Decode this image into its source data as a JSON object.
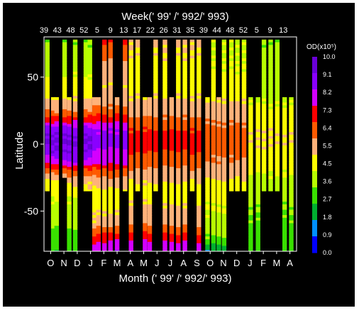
{
  "chart_data": {
    "type": "heatmap",
    "title": "Week(' 99' /' 992/' 993)",
    "xlabel": "Month (' 99' /' 992/' 993)",
    "ylabel": "Latitude",
    "ylim": [
      -80,
      80
    ],
    "y_ticks": [
      50,
      0,
      -50
    ],
    "y_tick_labels": [
      "50",
      "0",
      "-50"
    ],
    "month_labels": [
      "O",
      "N",
      "D",
      "J",
      "F",
      "M",
      "A",
      "M",
      "J",
      "J",
      "A",
      "S",
      "O",
      "N",
      "D",
      "J",
      "F",
      "M",
      "A"
    ],
    "week_labels": [
      "39",
      "43",
      "48",
      "52",
      "5",
      "9",
      "13",
      "17",
      "22",
      "26",
      "31",
      "35",
      "39",
      "44",
      "48",
      "52",
      "5",
      "9",
      "13"
    ],
    "colorbar": {
      "title": "OD(x10⁵)",
      "ticks": [
        "10.0",
        "9.1",
        "8.2",
        "7.3",
        "6.4",
        "5.5",
        "4.5",
        "3.6",
        "2.7",
        "1.8",
        "0.9",
        "0.0"
      ],
      "colors": [
        "#6a00d8",
        "#8a00ff",
        "#d400ff",
        "#ff0000",
        "#ff5a00",
        "#ffb27a",
        "#ffff00",
        "#b8ff00",
        "#39e000",
        "#00b030",
        "#0090ff",
        "#0000ff"
      ]
    },
    "swaths": [
      {
        "m": 0.25,
        "lat": [
          -35,
          78
        ],
        "profile": "tropic_strong"
      },
      {
        "m": 0.7,
        "lat": [
          -80,
          35
        ],
        "profile": "tropic_strong"
      },
      {
        "m": 0.95,
        "lat": [
          -80,
          35
        ],
        "profile": "tropic_strong"
      },
      {
        "m": 1.55,
        "lat": [
          -25,
          78
        ],
        "profile": "tropic_strong"
      },
      {
        "m": 1.9,
        "lat": [
          -80,
          35
        ],
        "profile": "tropic_strong"
      },
      {
        "m": 2.35,
        "lat": [
          -80,
          78
        ],
        "profile": "tropic_strong"
      },
      {
        "m": 3.15,
        "lat": [
          -35,
          78
        ],
        "profile": "tropic_strong"
      },
      {
        "m": 3.45,
        "lat": [
          -35,
          78
        ],
        "profile": "tropic_strong"
      },
      {
        "m": 3.8,
        "lat": [
          -80,
          35
        ],
        "profile": "broad_strong"
      },
      {
        "m": 4.1,
        "lat": [
          -80,
          35
        ],
        "profile": "broad_strong"
      },
      {
        "m": 4.55,
        "lat": [
          -80,
          78
        ],
        "profile": "broad_strong"
      },
      {
        "m": 5.0,
        "lat": [
          -80,
          78
        ],
        "profile": "broad_strong"
      },
      {
        "m": 5.5,
        "lat": [
          -80,
          35
        ],
        "profile": "broad_strong"
      },
      {
        "m": 6.1,
        "lat": [
          -35,
          78
        ],
        "profile": "broad_strong"
      },
      {
        "m": 6.55,
        "lat": [
          -80,
          78
        ],
        "profile": "broad_medium"
      },
      {
        "m": 7.05,
        "lat": [
          -35,
          78
        ],
        "profile": "broad_medium"
      },
      {
        "m": 7.6,
        "lat": [
          -80,
          35
        ],
        "profile": "broad_medium"
      },
      {
        "m": 7.95,
        "lat": [
          -80,
          35
        ],
        "profile": "broad_medium"
      },
      {
        "m": 8.4,
        "lat": [
          -35,
          78
        ],
        "profile": "broad_medium"
      },
      {
        "m": 9.1,
        "lat": [
          -80,
          78
        ],
        "profile": "broad_medium"
      },
      {
        "m": 9.6,
        "lat": [
          -80,
          35
        ],
        "profile": "broad_medium"
      },
      {
        "m": 10.1,
        "lat": [
          -80,
          78
        ],
        "profile": "broad_medium"
      },
      {
        "m": 10.6,
        "lat": [
          -80,
          78
        ],
        "profile": "broad_medium"
      },
      {
        "m": 11.15,
        "lat": [
          -35,
          78
        ],
        "profile": "broad_medium"
      },
      {
        "m": 11.65,
        "lat": [
          -80,
          78
        ],
        "profile": "broad_medium"
      },
      {
        "m": 12.3,
        "lat": [
          -80,
          35
        ],
        "profile": "broad_weak"
      },
      {
        "m": 12.75,
        "lat": [
          -80,
          78
        ],
        "profile": "broad_weak"
      },
      {
        "m": 13.15,
        "lat": [
          -80,
          35
        ],
        "profile": "broad_weak"
      },
      {
        "m": 13.55,
        "lat": [
          -80,
          78
        ],
        "profile": "broad_weak"
      },
      {
        "m": 14.1,
        "lat": [
          -35,
          78
        ],
        "profile": "broad_weak"
      },
      {
        "m": 14.55,
        "lat": [
          -35,
          78
        ],
        "profile": "broad_weak"
      },
      {
        "m": 15.05,
        "lat": [
          -35,
          78
        ],
        "profile": "broad_weak"
      },
      {
        "m": 15.55,
        "lat": [
          -80,
          35
        ],
        "profile": "weak"
      },
      {
        "m": 16.1,
        "lat": [
          -80,
          35
        ],
        "profile": "weak"
      },
      {
        "m": 16.55,
        "lat": [
          -35,
          78
        ],
        "profile": "weak"
      },
      {
        "m": 17.05,
        "lat": [
          -35,
          78
        ],
        "profile": "weak"
      },
      {
        "m": 17.55,
        "lat": [
          -35,
          78
        ],
        "profile": "weak"
      },
      {
        "m": 18.1,
        "lat": [
          -80,
          35
        ],
        "profile": "weak"
      },
      {
        "m": 18.6,
        "lat": [
          -80,
          35
        ],
        "profile": "weak"
      }
    ]
  }
}
